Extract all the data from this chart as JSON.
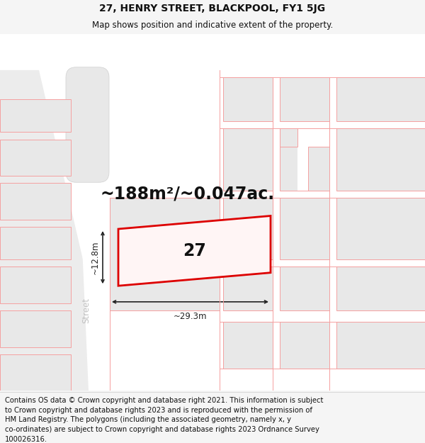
{
  "title": "27, HENRY STREET, BLACKPOOL, FY1 5JG",
  "subtitle": "Map shows position and indicative extent of the property.",
  "area_text": "~188m²/~0.047ac.",
  "property_number": "27",
  "dim_width": "~29.3m",
  "dim_height": "~12.8m",
  "street_label": "Street",
  "footer_lines": [
    "Contains OS data © Crown copyright and database right 2021. This information is subject",
    "to Crown copyright and database rights 2023 and is reproduced with the permission of",
    "HM Land Registry. The polygons (including the associated geometry, namely x, y",
    "co-ordinates) are subject to Crown copyright and database rights 2023 Ordnance Survey",
    "100026316."
  ],
  "map_bg": "#ffffff",
  "bg_color": "#f5f5f5",
  "building_fill": "#e8e8e8",
  "road_fill": "#ffffff",
  "diag_road_fill": "#ececec",
  "plot_line_color": "#dd0000",
  "plot_fill_color": "#fff5f5",
  "dim_line_color": "#222222",
  "pink": "#f5a0a0",
  "street_color": "#c0c0c0",
  "footer_bg": "#ffffff",
  "title_fontsize": 10,
  "subtitle_fontsize": 8.5,
  "area_fontsize": 17,
  "number_fontsize": 17,
  "dim_fontsize": 8.5,
  "street_fontsize": 8.5,
  "footer_fontsize": 7.2
}
